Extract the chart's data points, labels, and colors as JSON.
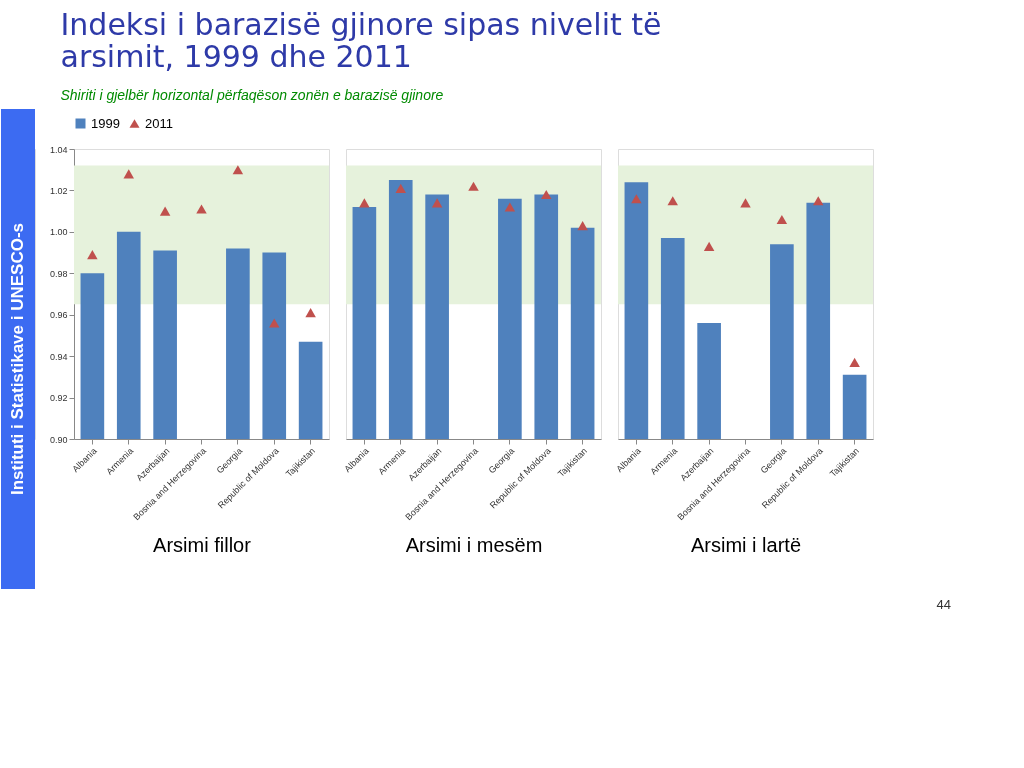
{
  "chart_data": [
    {
      "type": "bar",
      "title": "Indeksi i barazisë gjinore sipas nivelit të arsimit, 1999 dhe 2011",
      "subtitle": "Shiriti i gjelbër horizontal përfaqëson zonën e barazisë gjinore",
      "xlabel": "Arsimi fillor",
      "annotations": [
        "Instituti i Statistikave i UNESCO-s",
        "44"
      ],
      "categories": [
        "Albania",
        "Armenia",
        "Azerbaijan",
        "Bosnia and Herzegovina",
        "Georgia",
        "Republic of Moldova",
        "Tajikistan"
      ],
      "series": [
        {
          "name": "1999",
          "color": "#4f81bd",
          "values": [
            0.98,
            1.0,
            0.991,
            null,
            0.992,
            0.99,
            0.947
          ]
        },
        {
          "name": "2011",
          "type": "scatter",
          "color": "#c0504d",
          "values": [
            0.989,
            1.028,
            1.01,
            1.011,
            1.03,
            0.956,
            0.961
          ]
        }
      ],
      "bands": [
        {
          "axis": "y",
          "from": 0.965,
          "to": 1.032,
          "color": "#e6f2dc"
        }
      ],
      "ylim": [
        0.9,
        1.04
      ],
      "yticks": [
        {
          "value": 0.9,
          "label": "0.90"
        },
        {
          "value": 0.92,
          "label": "0.92"
        },
        {
          "value": 0.94,
          "label": "0.94"
        },
        {
          "value": 0.96,
          "label": "0.96"
        },
        {
          "value": 0.98,
          "label": "0.98"
        },
        {
          "value": 1.0,
          "label": "1.00"
        },
        {
          "value": 1.02,
          "label": "1.02"
        },
        {
          "value": 1.04,
          "label": "1.04"
        }
      ],
      "marker": "triangle",
      "grid": false,
      "legend": "top"
    },
    {
      "type": "bar",
      "xlabel": "Arsimi i mesëm",
      "categories": [
        "Albania",
        "Armenia",
        "Azerbaijan",
        "Bosnia and Herzegovina",
        "Georgia",
        "Republic of Moldova",
        "Tajikistan"
      ],
      "series": [
        {
          "name": "1999",
          "color": "#4f81bd",
          "values": [
            1.012,
            1.025,
            1.018,
            null,
            1.016,
            1.018,
            1.002
          ]
        },
        {
          "name": "2011",
          "type": "scatter",
          "color": "#c0504d",
          "values": [
            1.014,
            1.021,
            1.014,
            1.022,
            1.012,
            1.018,
            1.003
          ]
        }
      ],
      "bands": [
        {
          "axis": "y",
          "from": 0.965,
          "to": 1.032,
          "color": "#e6f2dc"
        }
      ],
      "ylim": [
        0.9,
        1.04
      ],
      "tick_labels": "x",
      "marker": "triangle",
      "grid": false,
      "legend": false
    },
    {
      "type": "bar",
      "xlabel": "Arsimi i lartë",
      "categories": [
        "Albania",
        "Armenia",
        "Azerbaijan",
        "Bosnia and Herzegovina",
        "Georgia",
        "Republic of Moldova",
        "Tajikistan"
      ],
      "series": [
        {
          "name": "1999",
          "color": "#4f81bd",
          "values": [
            1.024,
            0.997,
            0.956,
            null,
            0.994,
            1.014,
            0.931
          ]
        },
        {
          "name": "2011",
          "type": "scatter",
          "color": "#c0504d",
          "values": [
            1.016,
            1.015,
            0.993,
            1.014,
            1.006,
            1.015,
            0.937
          ]
        }
      ],
      "bands": [
        {
          "axis": "y",
          "from": 0.965,
          "to": 1.032,
          "color": "#e6f2dc"
        }
      ],
      "ylim": [
        0.9,
        1.04
      ],
      "tick_labels": "x",
      "marker": "triangle",
      "grid": false,
      "legend": false
    }
  ]
}
